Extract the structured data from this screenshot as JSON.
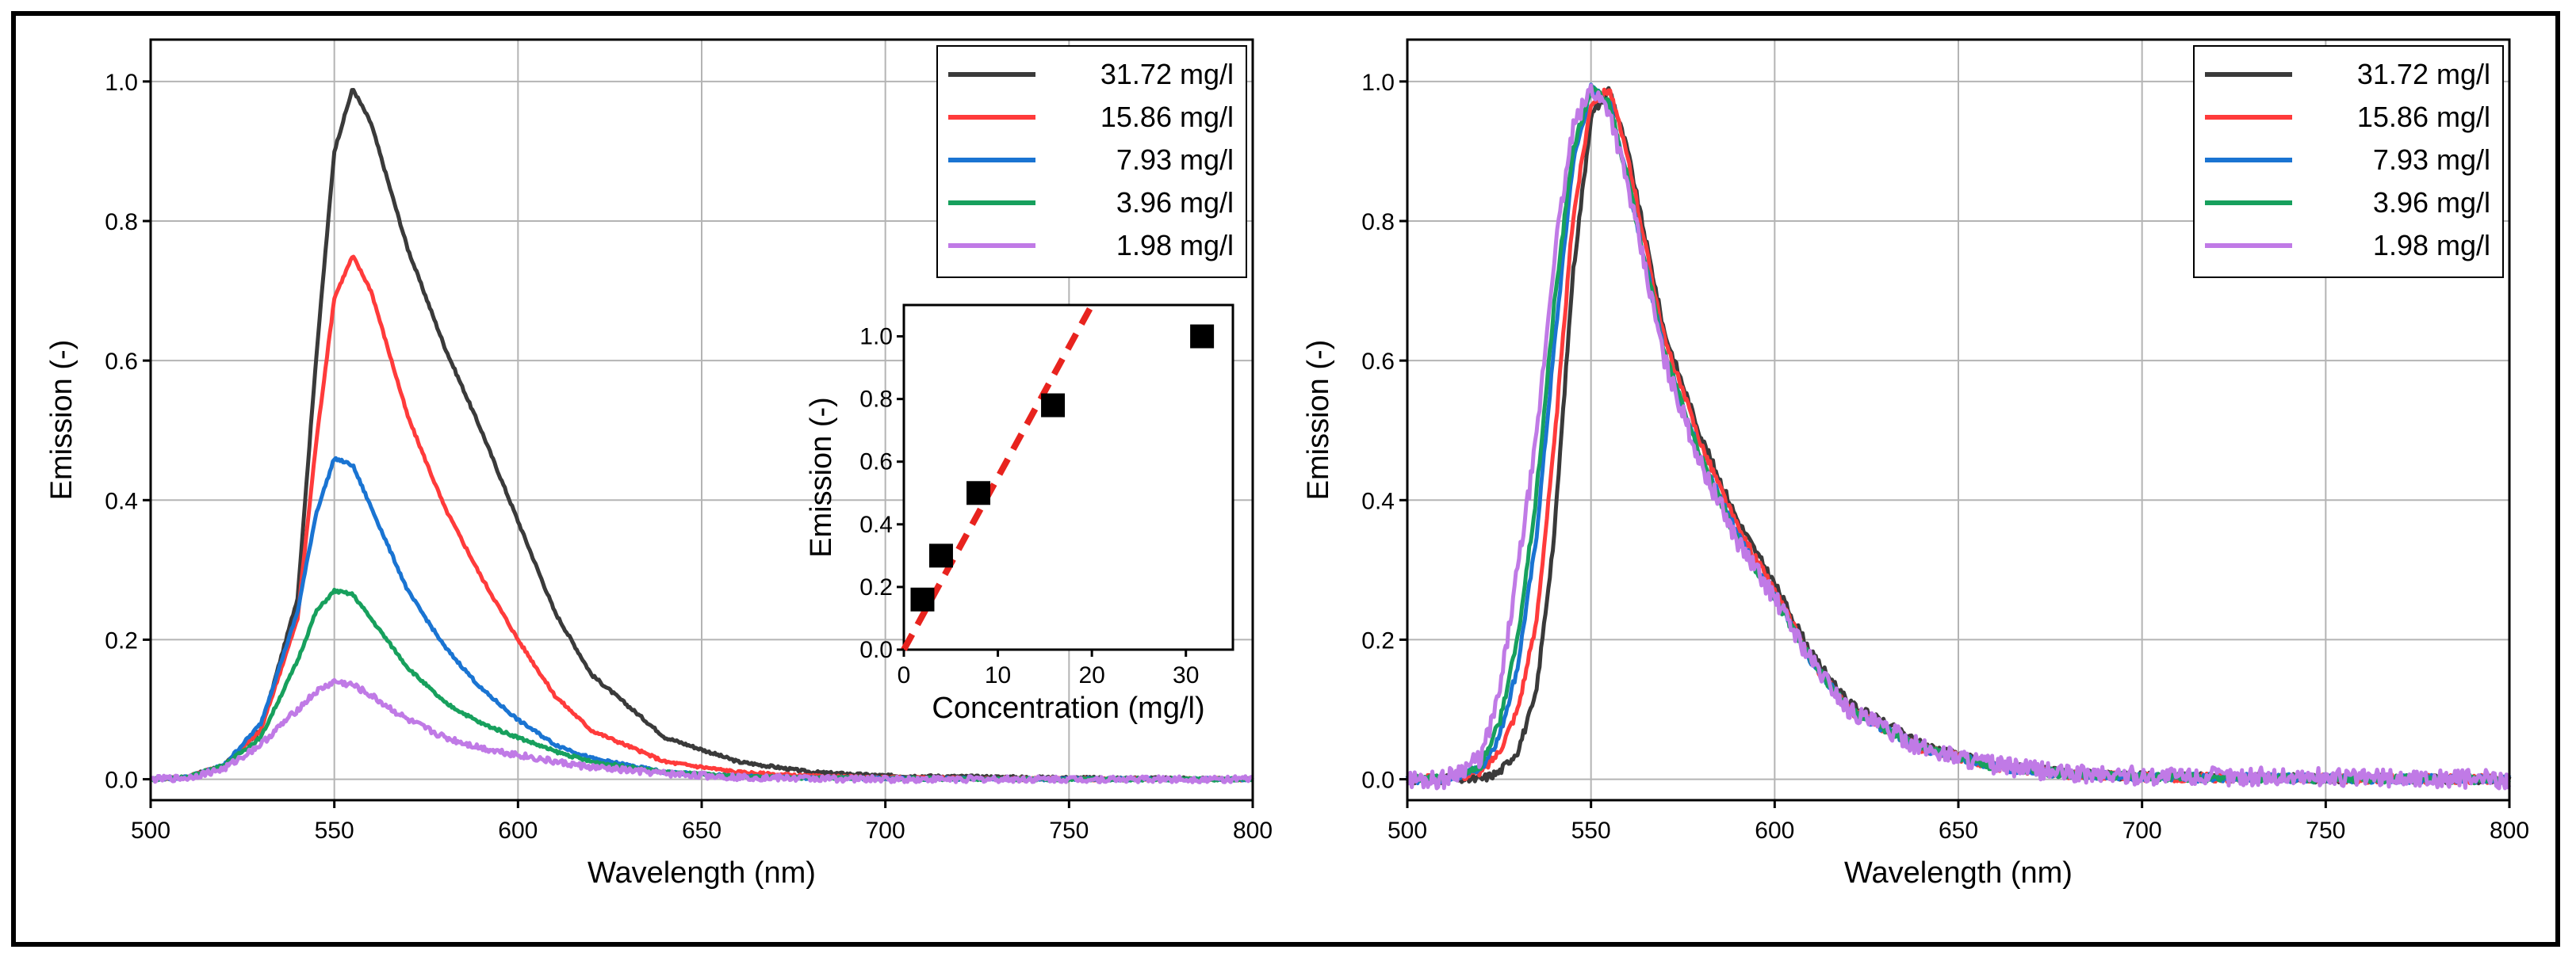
{
  "chart_data": [
    {
      "type": "line",
      "title": "",
      "xlabel": "Wavelength (nm)",
      "ylabel": "Emission (-)",
      "xlim": [
        500,
        800
      ],
      "ylim": [
        -0.03,
        1.06
      ],
      "xticks": [
        "500",
        "550",
        "600",
        "650",
        "700",
        "750",
        "800"
      ],
      "yticks": [
        "0.0",
        "0.2",
        "0.4",
        "0.6",
        "0.8",
        "1.0"
      ],
      "grid": true,
      "legend_position": "top-right",
      "x": [
        500,
        510,
        520,
        530,
        540,
        545,
        550,
        555,
        560,
        570,
        580,
        590,
        600,
        610,
        620,
        640,
        660,
        680,
        700,
        750,
        800
      ],
      "series": [
        {
          "name": "31.72 mg/l",
          "color": "#3a3a3a",
          "values": [
            0.0,
            0.003,
            0.02,
            0.07,
            0.26,
            0.6,
            0.9,
            0.99,
            0.94,
            0.76,
            0.62,
            0.5,
            0.37,
            0.24,
            0.15,
            0.06,
            0.025,
            0.01,
            0.005,
            0.002,
            0.0
          ]
        },
        {
          "name": "15.86 mg/l",
          "color": "#ff3b3b",
          "values": [
            0.0,
            0.003,
            0.02,
            0.07,
            0.23,
            0.48,
            0.69,
            0.75,
            0.7,
            0.52,
            0.39,
            0.29,
            0.2,
            0.12,
            0.07,
            0.025,
            0.01,
            0.004,
            0.002,
            0.0,
            0.0
          ]
        },
        {
          "name": "7.93 mg/l",
          "color": "#1a74d2",
          "values": [
            0.0,
            0.003,
            0.02,
            0.08,
            0.24,
            0.38,
            0.46,
            0.45,
            0.39,
            0.27,
            0.19,
            0.13,
            0.085,
            0.05,
            0.03,
            0.01,
            0.004,
            0.002,
            0.001,
            0.0,
            0.0
          ]
        },
        {
          "name": "3.96 mg/l",
          "color": "#17a05d",
          "values": [
            0.0,
            0.003,
            0.02,
            0.06,
            0.17,
            0.24,
            0.27,
            0.265,
            0.23,
            0.16,
            0.11,
            0.08,
            0.06,
            0.04,
            0.025,
            0.01,
            0.004,
            0.002,
            0.001,
            0.0,
            0.0
          ]
        },
        {
          "name": "1.98 mg/l",
          "color": "#c07ae6",
          "values": [
            0.0,
            0.002,
            0.015,
            0.05,
            0.1,
            0.125,
            0.14,
            0.135,
            0.12,
            0.085,
            0.06,
            0.045,
            0.035,
            0.025,
            0.017,
            0.008,
            0.003,
            0.001,
            0.0,
            0.0,
            0.0
          ]
        }
      ]
    },
    {
      "type": "scatter",
      "title": "",
      "xlabel": "Concentration (mg/l)",
      "ylabel": "Emission (-)",
      "xlim": [
        0,
        35
      ],
      "ylim": [
        0,
        1.1
      ],
      "xticks": [
        "0",
        "10",
        "20",
        "30"
      ],
      "yticks": [
        "0.0",
        "0.2",
        "0.4",
        "0.6",
        "0.8",
        "1.0"
      ],
      "grid": false,
      "points": {
        "x": [
          1.98,
          3.96,
          7.93,
          15.86,
          31.72
        ],
        "y": [
          0.16,
          0.3,
          0.5,
          0.78,
          1.0
        ],
        "color": "#000000"
      },
      "fit_line": {
        "x": [
          0,
          20
        ],
        "y": [
          0,
          1.1
        ],
        "color": "#e8231e",
        "style": "dashed"
      }
    },
    {
      "type": "line",
      "title": "",
      "xlabel": "Wavelength (nm)",
      "ylabel": "Emission (-)",
      "xlim": [
        500,
        800
      ],
      "ylim": [
        -0.03,
        1.06
      ],
      "xticks": [
        "500",
        "550",
        "600",
        "650",
        "700",
        "750",
        "800"
      ],
      "yticks": [
        "0.0",
        "0.2",
        "0.4",
        "0.6",
        "0.8",
        "1.0"
      ],
      "grid": true,
      "legend_position": "top-right",
      "x": [
        500,
        510,
        520,
        525,
        530,
        535,
        540,
        545,
        550,
        555,
        560,
        570,
        580,
        590,
        600,
        610,
        620,
        640,
        660,
        680,
        700,
        750,
        800
      ],
      "series": [
        {
          "name": "31.72 mg/l",
          "color": "#3a3a3a",
          "values": [
            0.0,
            0.0,
            0.0,
            0.01,
            0.04,
            0.12,
            0.35,
            0.72,
            0.95,
            0.99,
            0.9,
            0.64,
            0.49,
            0.37,
            0.28,
            0.18,
            0.11,
            0.05,
            0.02,
            0.008,
            0.004,
            0.001,
            0.0
          ]
        },
        {
          "name": "15.86 mg/l",
          "color": "#ff3b3b",
          "values": [
            0.0,
            0.0,
            0.01,
            0.04,
            0.1,
            0.22,
            0.48,
            0.8,
            0.97,
            0.99,
            0.89,
            0.63,
            0.48,
            0.36,
            0.27,
            0.17,
            0.1,
            0.045,
            0.018,
            0.007,
            0.003,
            0.001,
            0.0
          ]
        },
        {
          "name": "7.93 mg/l",
          "color": "#1a74d2",
          "values": [
            0.0,
            0.0,
            0.015,
            0.06,
            0.16,
            0.34,
            0.62,
            0.88,
            0.99,
            0.97,
            0.86,
            0.61,
            0.46,
            0.35,
            0.26,
            0.17,
            0.1,
            0.045,
            0.018,
            0.007,
            0.003,
            0.001,
            0.0
          ]
        },
        {
          "name": "3.96 mg/l",
          "color": "#17a05d",
          "values": [
            0.0,
            0.0,
            0.02,
            0.08,
            0.2,
            0.4,
            0.68,
            0.9,
            0.99,
            0.97,
            0.86,
            0.61,
            0.46,
            0.34,
            0.26,
            0.17,
            0.1,
            0.045,
            0.018,
            0.007,
            0.003,
            0.001,
            0.0
          ]
        },
        {
          "name": "1.98 mg/l",
          "color": "#c07ae6",
          "values": [
            0.0,
            0.0,
            0.03,
            0.12,
            0.3,
            0.48,
            0.75,
            0.93,
            0.99,
            0.96,
            0.85,
            0.6,
            0.45,
            0.34,
            0.26,
            0.17,
            0.1,
            0.045,
            0.02,
            0.008,
            0.005,
            0.003,
            0.0
          ]
        }
      ]
    }
  ]
}
